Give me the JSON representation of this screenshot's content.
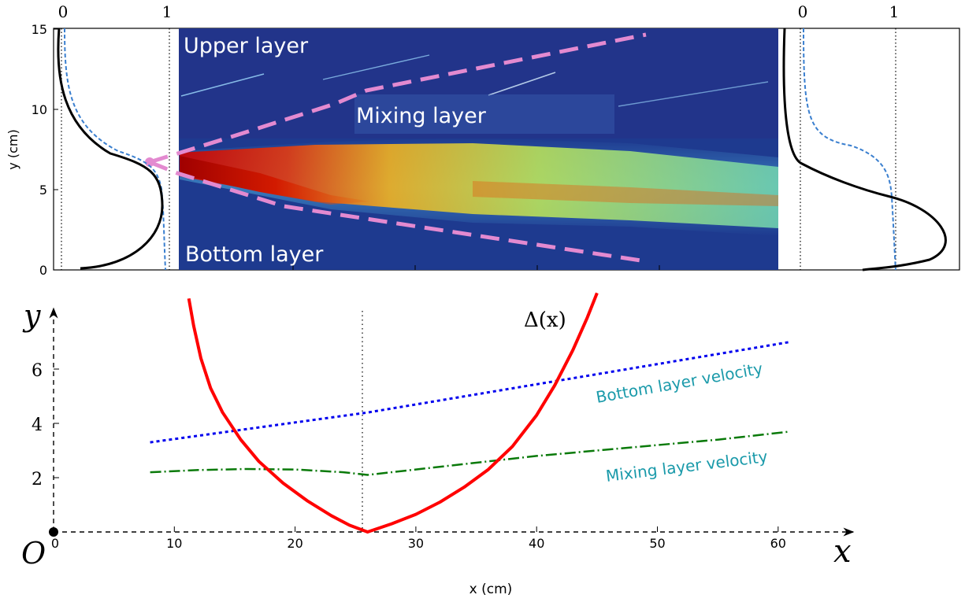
{
  "top_panel": {
    "y_axis_label": "y (cm)",
    "y_ticks": [
      "0",
      "5",
      "10",
      "15"
    ],
    "left_profile_ticks": [
      "0",
      "1"
    ],
    "right_profile_ticks": [
      "0",
      "1"
    ],
    "labels": {
      "upper": "Upper layer",
      "mixing": "Mixing layer",
      "bottom": "Bottom layer"
    },
    "colors": {
      "boundary": "#e38ad0",
      "profile_solid": "#000000",
      "profile_dashed": "#3a7fcf",
      "field_bg": "#1e3a8f"
    }
  },
  "bottom_panel": {
    "y_axis_symbol": "y",
    "x_axis_symbol": "x",
    "origin_symbol": "O",
    "x_axis_label": "x (cm)",
    "delta_label": "Δ(x)",
    "annotations": {
      "bottom_velocity": "Bottom layer velocity",
      "mixing_velocity": "Mixing layer velocity"
    },
    "colors": {
      "delta": "#ff0000",
      "bottom": "#0000ee",
      "mixing": "#0a7a0a",
      "annotation": "#1a9aaa"
    }
  },
  "chart_data": {
    "type": "line",
    "x_ticks": [
      "0",
      "10",
      "20",
      "30",
      "40",
      "50",
      "60"
    ],
    "y_ticks": [
      "2",
      "4",
      "6"
    ],
    "xlim": [
      0,
      70
    ],
    "ylim": [
      0,
      7.8
    ],
    "series": [
      {
        "name": "Bottom layer velocity",
        "style": "dotted",
        "x": [
          8,
          26,
          61
        ],
        "y": [
          3.3,
          4.4,
          7.0
        ]
      },
      {
        "name": "Mixing layer velocity",
        "style": "dash-dot",
        "x": [
          8,
          12,
          16,
          20,
          24,
          26,
          30,
          35,
          40,
          45,
          50,
          55,
          61
        ],
        "y": [
          2.2,
          2.28,
          2.32,
          2.3,
          2.2,
          2.1,
          2.3,
          2.55,
          2.8,
          3.0,
          3.2,
          3.4,
          3.7
        ]
      },
      {
        "name": "Δ(x)",
        "style": "solid",
        "x": [
          11.2,
          11.6,
          12.2,
          13.0,
          14.0,
          15.5,
          17.0,
          19.0,
          21.0,
          23.0,
          24.5,
          26.0,
          28.0,
          30.0,
          32.0,
          34.0,
          36.0,
          38.0,
          40.0,
          41.5,
          43.0,
          44.2,
          45.0
        ],
        "y": [
          8.6,
          7.6,
          6.4,
          5.3,
          4.4,
          3.4,
          2.6,
          1.8,
          1.15,
          0.6,
          0.25,
          0.0,
          0.3,
          0.65,
          1.1,
          1.65,
          2.3,
          3.15,
          4.3,
          5.4,
          6.7,
          7.9,
          8.8
        ]
      }
    ]
  }
}
